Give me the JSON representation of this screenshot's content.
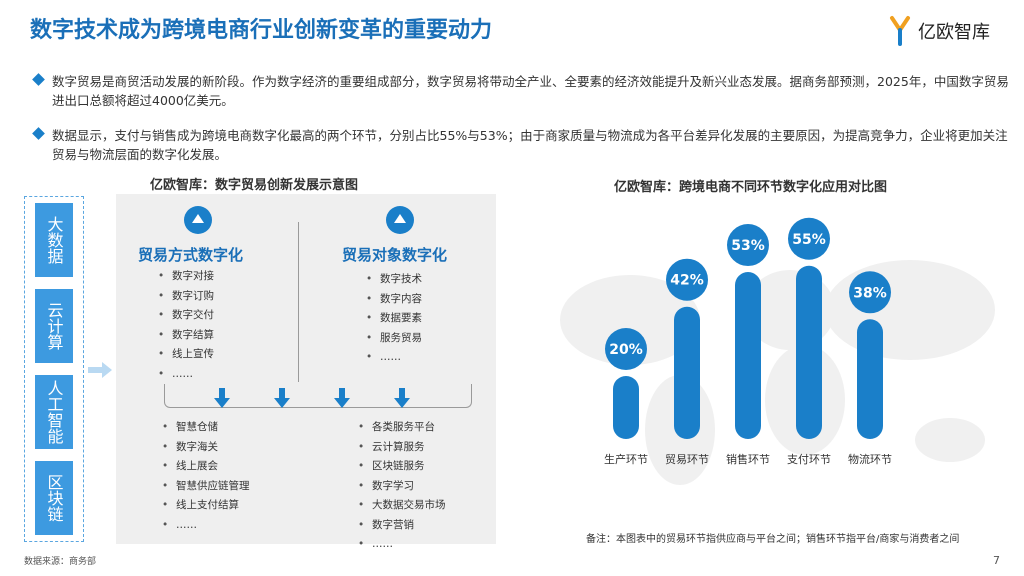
{
  "header": {
    "title": "数字技术成为跨境电商行业创新变革的重要动力",
    "logo_text": "亿欧智库"
  },
  "bullets": [
    "数字贸易是商贸活动发展的新阶段。作为数字经济的重要组成部分，数字贸易将带动全产业、全要素的经济效能提升及新兴业态发展。据商务部预测，2025年，中国数字贸易进出口总额将超过4000亿美元。",
    "数据显示，支付与销售成为跨境电商数字化最高的两个环节，分别占比55%与53%；由于商家质量与物流成为各平台差异化发展的主要原因，为提高竞争力，企业将更加关注贸易与物流层面的数字化发展。"
  ],
  "diagram": {
    "title": "亿欧智库：数字贸易创新发展示意图",
    "technologies": [
      "大数据",
      "云计算",
      "人工智能",
      "区块链"
    ],
    "left_heading": "贸易方式数字化",
    "left_items": [
      "数字对接",
      "数字订购",
      "数字交付",
      "数字结算",
      "线上宣传",
      "……"
    ],
    "right_heading": "贸易对象数字化",
    "right_items": [
      "数字技术",
      "数字内容",
      "数据要素",
      "服务贸易",
      "……"
    ],
    "bottom_left_items": [
      "智慧仓储",
      "数字海关",
      "线上展会",
      "智慧供应链管理",
      "线上支付结算",
      "……"
    ],
    "bottom_right_items": [
      "各类服务平台",
      "云计算服务",
      "区块链服务",
      "数字学习",
      "大数据交易市场",
      "数字营销",
      "……"
    ],
    "colors": {
      "accent": "#1a7fc9",
      "panel_bg": "#efefef",
      "tech_bg": "#3d9ae0"
    },
    "icons": [
      "up-arrow-circle-icon",
      "down-arrow-icon",
      "right-arrow-icon"
    ]
  },
  "chart_data": {
    "type": "bar",
    "title": "亿欧智库：跨境电商不同环节数字化应用对比图",
    "categories": [
      "生产环节",
      "贸易环节",
      "销售环节",
      "支付环节",
      "物流环节"
    ],
    "values": [
      20,
      42,
      53,
      55,
      38
    ],
    "value_labels": [
      "20%",
      "42%",
      "53%",
      "55%",
      "38%"
    ],
    "ylim": [
      0,
      60
    ],
    "grid": false,
    "bar_color": "#1a7fc9"
  },
  "footer": {
    "note": "备注：本图表中的贸易环节指供应商与平台之间；销售环节指平台/商家与消费者之间",
    "source": "数据来源：商务部",
    "page": "7"
  }
}
